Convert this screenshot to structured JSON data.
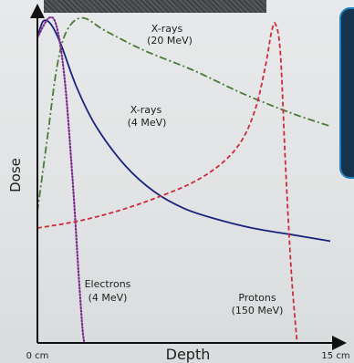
{
  "chart_data": {
    "type": "line",
    "xlabel": "Depth",
    "ylabel": "Dose",
    "x_range": [
      0,
      15
    ],
    "x_tick_labels": [
      "0 cm",
      "15 cm"
    ],
    "grid": false,
    "series": [
      {
        "name": "X-rays (4 MeV)",
        "label_lines": [
          "X-rays",
          "(4 MeV)"
        ],
        "color": "#1a237e",
        "style": "solid",
        "points": [
          [
            0.0,
            0.93
          ],
          [
            0.3,
            0.98
          ],
          [
            0.7,
            0.97
          ],
          [
            1.2,
            0.91
          ],
          [
            2.0,
            0.78
          ],
          [
            3.0,
            0.66
          ],
          [
            4.5,
            0.54
          ],
          [
            6.0,
            0.46
          ],
          [
            7.5,
            0.41
          ],
          [
            9.0,
            0.38
          ],
          [
            11.0,
            0.35
          ],
          [
            13.0,
            0.33
          ],
          [
            15.0,
            0.31
          ]
        ]
      },
      {
        "name": "X-rays (20 MeV)",
        "label_lines": [
          "X-rays",
          "(20 MeV)"
        ],
        "color": "#4a7a3a",
        "style": "dashdot",
        "points": [
          [
            0.0,
            0.4
          ],
          [
            0.5,
            0.62
          ],
          [
            1.0,
            0.84
          ],
          [
            1.5,
            0.95
          ],
          [
            2.3,
            0.99
          ],
          [
            3.5,
            0.95
          ],
          [
            5.5,
            0.89
          ],
          [
            8.0,
            0.83
          ],
          [
            10.5,
            0.76
          ],
          [
            13.0,
            0.7
          ],
          [
            15.0,
            0.66
          ]
        ]
      },
      {
        "name": "Electrons (4 MeV)",
        "label_lines": [
          "Electrons",
          "(4 MeV)"
        ],
        "color": "#7b2d8b",
        "style": "dotted",
        "points": [
          [
            0.0,
            0.93
          ],
          [
            0.6,
            0.99
          ],
          [
            1.0,
            0.96
          ],
          [
            1.4,
            0.8
          ],
          [
            1.8,
            0.5
          ],
          [
            2.1,
            0.22
          ],
          [
            2.3,
            0.05
          ],
          [
            2.4,
            0.0
          ]
        ]
      },
      {
        "name": "Protons (150 MeV)",
        "label_lines": [
          "Protons",
          "(150 MeV)"
        ],
        "color": "#cc2b3a",
        "style": "dashed",
        "points": [
          [
            0.0,
            0.35
          ],
          [
            2.0,
            0.37
          ],
          [
            4.0,
            0.4
          ],
          [
            6.0,
            0.44
          ],
          [
            8.0,
            0.49
          ],
          [
            9.5,
            0.55
          ],
          [
            10.5,
            0.62
          ],
          [
            11.2,
            0.72
          ],
          [
            11.7,
            0.85
          ],
          [
            12.0,
            0.95
          ],
          [
            12.2,
            0.97
          ],
          [
            12.45,
            0.88
          ],
          [
            12.7,
            0.55
          ],
          [
            13.0,
            0.22
          ],
          [
            13.3,
            0.0
          ]
        ]
      }
    ]
  }
}
